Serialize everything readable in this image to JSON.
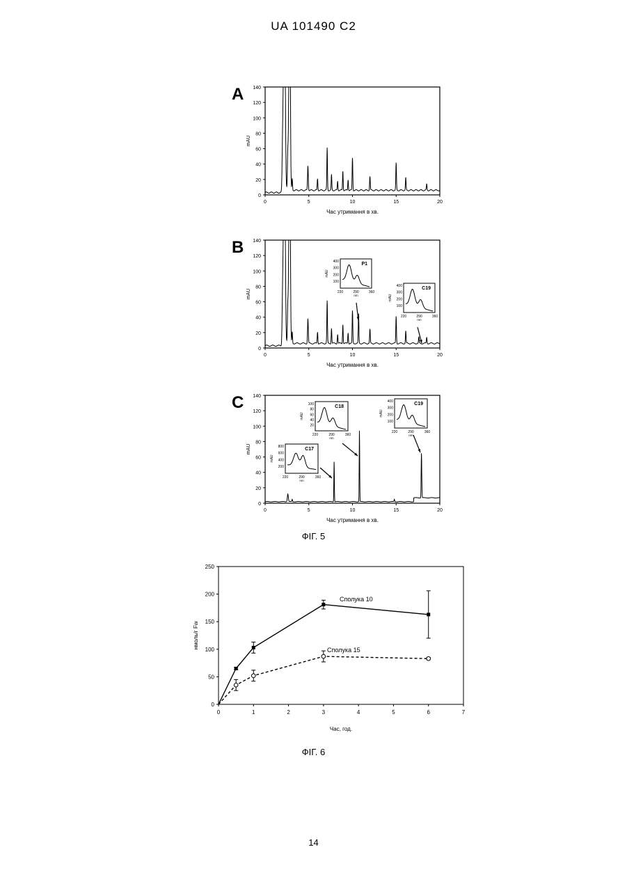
{
  "page": {
    "header": "UA   101490   C2",
    "page_number": "14"
  },
  "fig5": {
    "caption": "ФІГ. 5",
    "ylabel": "mAU",
    "xlabel_a": "Час утримання в хв.",
    "xlabel_b": "Час утримання в хв.",
    "xlabel_c": "Час утримання в хв.",
    "panels": [
      {
        "letter": "A"
      },
      {
        "letter": "B",
        "insets": [
          {
            "label": "P1",
            "yticks": [
              "400",
              "300",
              "200",
              "100"
            ],
            "xticks": [
              "220",
              "290",
              "360"
            ],
            "xunit": "nm",
            "ylabel": "mAU"
          },
          {
            "label": "C19",
            "yticks": [
              "400",
              "300",
              "200",
              "100"
            ],
            "xticks": [
              "220",
              "290",
              "360"
            ],
            "xunit": "nm",
            "ylabel": "mAU"
          }
        ]
      },
      {
        "letter": "C",
        "insets": [
          {
            "label": "C18",
            "yticks": [
              "100",
              "80",
              "60",
              "40",
              "20"
            ],
            "xticks": [
              "220",
              "290",
              "360"
            ],
            "xunit": "nm",
            "ylabel": "mAU"
          },
          {
            "label": "C19",
            "yticks": [
              "400",
              "300",
              "200",
              "100"
            ],
            "xticks": [
              "220",
              "290",
              "360"
            ],
            "xunit": "nm",
            "ylabel": "mAU"
          },
          {
            "label": "C17",
            "yticks": [
              "800",
              "600",
              "400",
              "200"
            ],
            "xticks": [
              "220",
              "290",
              "360"
            ],
            "xunit": "nm",
            "ylabel": "mAU"
          }
        ]
      }
    ],
    "yticks": [
      "140",
      "120",
      "100",
      "80",
      "60",
      "40",
      "20",
      "0"
    ],
    "xticks": [
      "0",
      "5",
      "10",
      "15",
      "20"
    ]
  },
  "fig6": {
    "caption": "ФІГ. 6",
    "chart_data": {
      "type": "line",
      "xlabel": "Час, год.",
      "ylabel": "нмоль/г Fw",
      "xlim": [
        0,
        7
      ],
      "ylim": [
        0,
        250
      ],
      "xticks": [
        "0",
        "1",
        "2",
        "3",
        "4",
        "5",
        "6",
        "7"
      ],
      "yticks": [
        "0",
        "50",
        "100",
        "150",
        "200",
        "250"
      ],
      "series": [
        {
          "name": "Сполука 10",
          "style": "solid",
          "marker": "filled",
          "x": [
            0,
            0.5,
            1,
            3,
            6
          ],
          "y": [
            0,
            65,
            103,
            181,
            163
          ],
          "err": [
            0,
            2,
            10,
            8,
            43
          ]
        },
        {
          "name": "Сполука 15",
          "style": "dashed",
          "marker": "open",
          "x": [
            0,
            0.5,
            1,
            3,
            6
          ],
          "y": [
            0,
            35,
            52,
            87,
            83
          ],
          "err": [
            0,
            10,
            10,
            10,
            2
          ]
        }
      ]
    }
  }
}
